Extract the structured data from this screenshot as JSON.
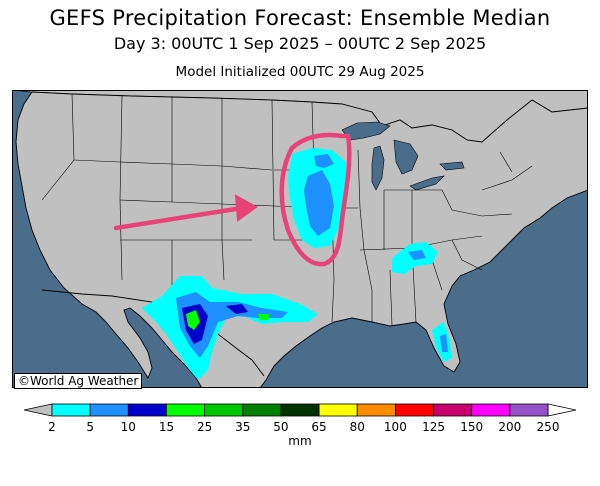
{
  "header": {
    "title": "GEFS Precipitation Forecast: Ensemble Median",
    "subtitle": "Day 3: 00UTC 1 Sep 2025 – 00UTC 2 Sep 2025",
    "init": "Model Initialized 00UTC 29 Aug 2025"
  },
  "credit": "©World Ag Weather",
  "legend": {
    "unit": "mm",
    "ticks": [
      "2",
      "5",
      "10",
      "15",
      "25",
      "35",
      "50",
      "65",
      "80",
      "100",
      "125",
      "150",
      "200",
      "250"
    ],
    "colors": [
      "#00ffff",
      "#1e90ff",
      "#0000cd",
      "#00ff00",
      "#00c800",
      "#008000",
      "#003200",
      "#ffff00",
      "#ff8c00",
      "#ff0000",
      "#c8006e",
      "#ff00ff",
      "#9650c8"
    ]
  },
  "colors": {
    "ocean": "#4a6d8c",
    "land": "#c0c0c0",
    "annotation": "#e84379"
  }
}
